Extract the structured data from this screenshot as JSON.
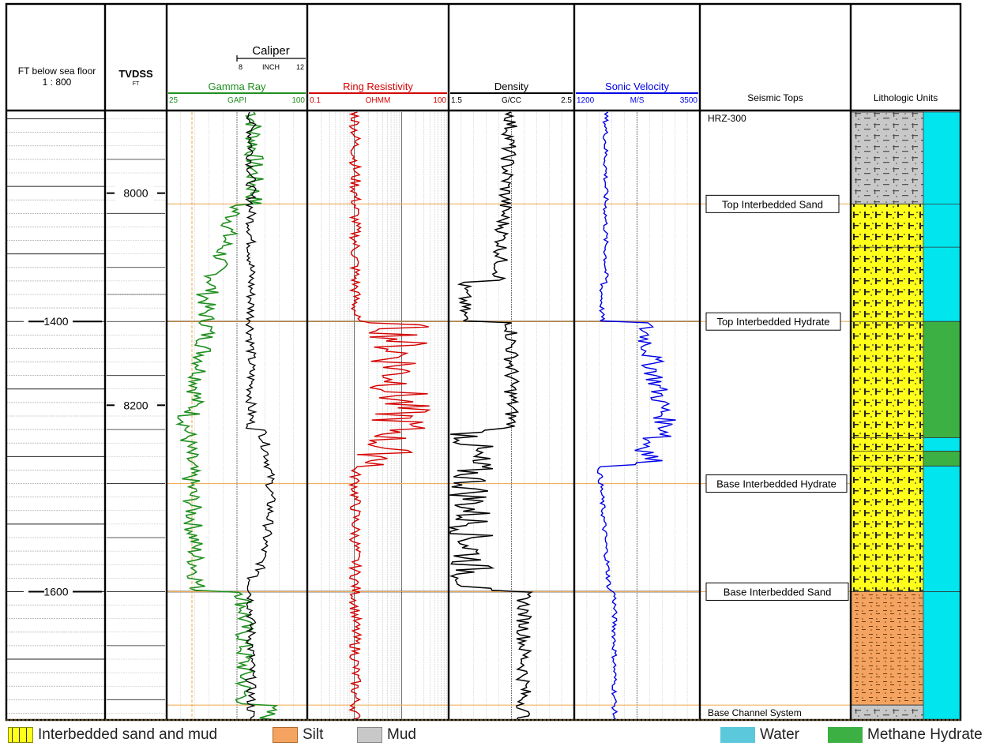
{
  "chart_data": {
    "type": "line",
    "title": "",
    "depth_track": {
      "header": "FT below sea floor",
      "scale": "1 : 800",
      "ticks": [
        "1400",
        "1600"
      ]
    },
    "tvdss_track": {
      "header": "TVDSS",
      "unit": "FT",
      "ticks": [
        "8000",
        "8200"
      ]
    },
    "caliper": {
      "name": "Caliper",
      "unit": "INCH",
      "min": "8",
      "max": "12"
    },
    "tracks": [
      {
        "name": "Gamma Ray",
        "unit": "GAPI",
        "min": "25",
        "max": "100",
        "color": "#1f8f1f"
      },
      {
        "name": "Ring Resistivity",
        "unit": "OHMM",
        "min": "0.1",
        "max": "100",
        "color": "#d40000",
        "scale": "log"
      },
      {
        "name": "Density",
        "unit": "G/CC",
        "min": "1.5",
        "max": "2.5",
        "color": "#000000"
      },
      {
        "name": "Sonic Velocity",
        "unit": "M/S",
        "min": "1200",
        "max": "3500",
        "color": "#0000e6"
      }
    ],
    "seismic_tops_header": "Seismic Tops",
    "lithologic_units_header": "Lithologic Units",
    "tops": [
      {
        "label": "HRZ-300",
        "depth_ft": 1245
      },
      {
        "label": "Top Interbedded Sand",
        "depth_ft": 1313
      },
      {
        "label": "Top Interbedded Hydrate",
        "depth_ft": 1400
      },
      {
        "label": "Base Interbedded Hydrate",
        "depth_ft": 1520
      },
      {
        "label": "Base Interbedded Sand",
        "depth_ft": 1600
      },
      {
        "label": "Base Channel System",
        "depth_ft": 1684
      }
    ],
    "lithology": [
      {
        "unit": "mud",
        "top_ft": 1245,
        "base_ft": 1313
      },
      {
        "unit": "sand",
        "top_ft": 1313,
        "base_ft": 1600
      },
      {
        "unit": "silt",
        "top_ft": 1600,
        "base_ft": 1684
      },
      {
        "unit": "mud",
        "top_ft": 1684,
        "base_ft": 1695
      }
    ],
    "pore_fill": [
      {
        "fill": "water",
        "top_ft": 1245,
        "base_ft": 1400
      },
      {
        "fill": "hydrate",
        "top_ft": 1400,
        "base_ft": 1486
      },
      {
        "fill": "water",
        "top_ft": 1486,
        "base_ft": 1496
      },
      {
        "fill": "hydrate",
        "top_ft": 1496,
        "base_ft": 1507
      },
      {
        "fill": "water",
        "top_ft": 1507,
        "base_ft": 1695
      }
    ]
  },
  "legend": [
    {
      "key": "sand",
      "label": "Interbedded sand and  mud"
    },
    {
      "key": "silt",
      "label": "Silt"
    },
    {
      "key": "mud",
      "label": "Mud"
    },
    {
      "key": "water",
      "label": "Water"
    },
    {
      "key": "hydrate",
      "label": "Methane Hydrate"
    }
  ],
  "colors": {
    "sand": "#ffff1a",
    "silt": "#f4a460",
    "mud": "#c8c8c8",
    "water": "#00e5ee",
    "hydrate": "#3cb043",
    "top_line": "#f0b060"
  }
}
